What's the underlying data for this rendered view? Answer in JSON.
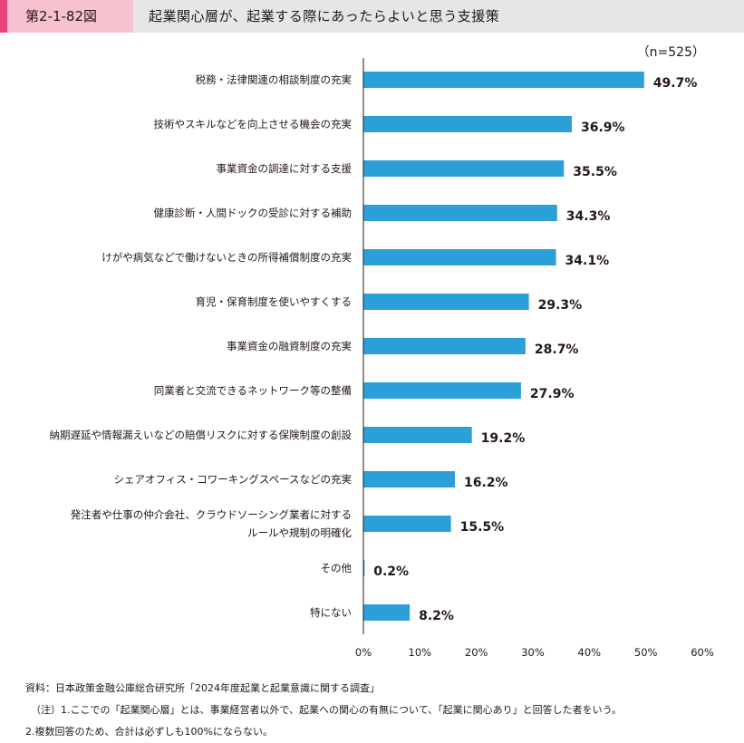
{
  "header": {
    "figure_number": "第2-1-82図",
    "title": "起業関心層が、起業する際にあったらよいと思う支援策"
  },
  "chart_data": {
    "type": "bar",
    "orientation": "horizontal",
    "sample_note": "（n=525）",
    "categories": [
      [
        "税務・法律関連の相談制度の充実"
      ],
      [
        "技術やスキルなどを向上させる機会の充実"
      ],
      [
        "事業資金の調達に対する支援"
      ],
      [
        "健康診断・人間ドックの受診に対する補助"
      ],
      [
        "けがや病気などで働けないときの所得補償制度の充実"
      ],
      [
        "育児・保育制度を使いやすくする"
      ],
      [
        "事業資金の融資制度の充実"
      ],
      [
        "同業者と交流できるネットワーク等の整備"
      ],
      [
        "納期遅延や情報漏えいなどの賠償リスクに対する保険制度の創設"
      ],
      [
        "シェアオフィス・コワーキングスペースなどの充実"
      ],
      [
        "発注者や仕事の仲介会社、クラウドソーシング業者に対する",
        "ルールや規制の明確化"
      ],
      [
        "その他"
      ],
      [
        "特にない"
      ]
    ],
    "values": [
      49.7,
      36.9,
      35.5,
      34.3,
      34.1,
      29.3,
      28.7,
      27.9,
      19.2,
      16.2,
      15.5,
      0.2,
      8.2
    ],
    "value_labels": [
      "49.7%",
      "36.9%",
      "35.5%",
      "34.3%",
      "34.1%",
      "29.3%",
      "28.7%",
      "27.9%",
      "19.2%",
      "16.2%",
      "15.5%",
      "0.2%",
      "8.2%"
    ],
    "xlim": [
      0,
      60
    ],
    "x_ticks": [
      "0%",
      "10%",
      "20%",
      "30%",
      "40%",
      "50%",
      "60%"
    ],
    "bar_color": "#2ba0d8",
    "grid": false
  },
  "notes": [
    "資料：日本政策金融公庫総合研究所「2024年度起業と起業意識に関する調査」",
    "（注）1.ここでの「起業関心層」とは、事業経営者以外で、起業への関心の有無について、「起業に関心あり」と回答した者をいう。",
    "2.複数回答のため、合計は必ずしも100%にならない。"
  ]
}
